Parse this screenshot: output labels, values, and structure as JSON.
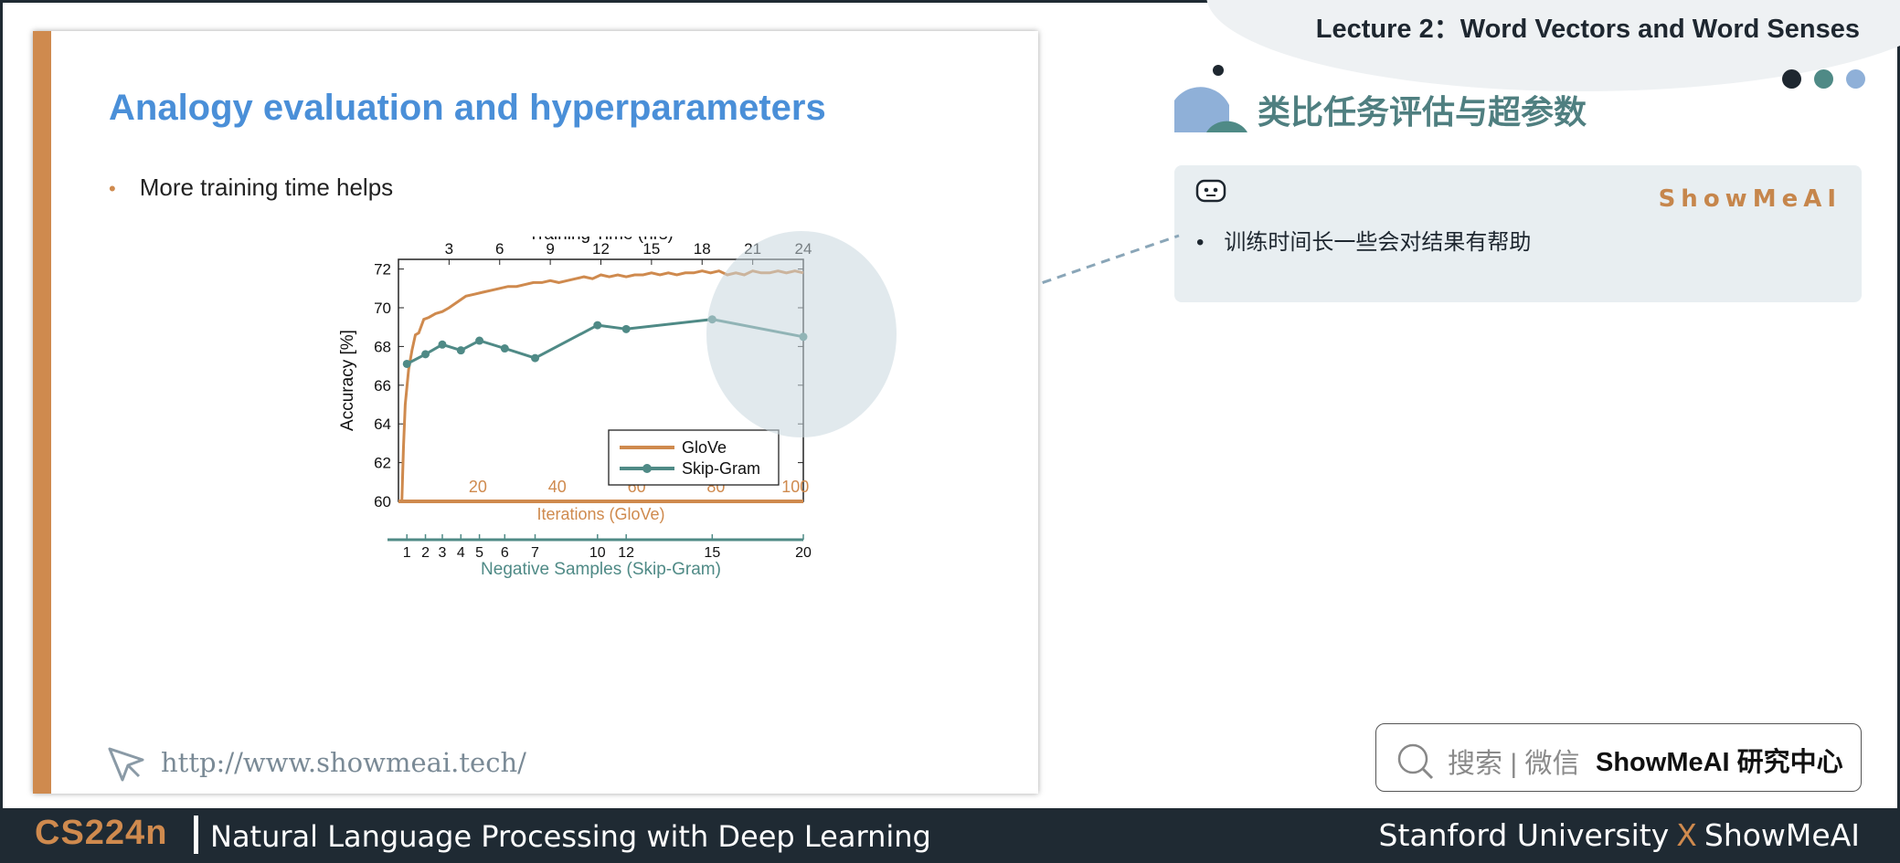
{
  "slide": {
    "title": "Analogy evaluation and hyperparameters",
    "bullet": "More training time helps",
    "url": "http://www.showmeai.tech/"
  },
  "header": {
    "lecture": "Lecture 2：Word Vectors and Word Senses",
    "cn_title": "类比任务评估与超参数"
  },
  "card": {
    "brand": "ShowMeAI",
    "bullet": "训练时间长一些会对结果有帮助"
  },
  "search": {
    "hint": "搜索 | 微信",
    "name": "ShowMeAI 研究中心"
  },
  "footer": {
    "course": "CS224n",
    "description": "Natural Language Processing with Deep Learning",
    "org_left": "Stanford University",
    "x": "X",
    "org_right": "ShowMeAI"
  },
  "colors": {
    "accent_orange": "#cf8a4e",
    "title_blue": "#4a8fd8",
    "teal": "#4f7f80",
    "dark": "#1f2a33",
    "dots": [
      "#1e2730",
      "#4f8a86",
      "#8fb0d8"
    ]
  },
  "icons": [
    "cursor-icon",
    "robot-icon",
    "search-icon"
  ],
  "chart_data": {
    "type": "line",
    "title": "",
    "ylabel": "Accuracy [%]",
    "ylim": [
      60,
      72.5
    ],
    "yticks": [
      60,
      62,
      64,
      66,
      68,
      70,
      72
    ],
    "top_axis": {
      "label": "Training Time (hrs)",
      "ticks": [
        3,
        6,
        9,
        12,
        15,
        18,
        21,
        24
      ],
      "range": [
        0,
        24
      ]
    },
    "bottom_axis_glove": {
      "label": "Iterations (GloVe)",
      "ticks": [
        20,
        40,
        60,
        80,
        100
      ],
      "range": [
        0,
        102
      ]
    },
    "bottom_axis_skipgram": {
      "label": "Negative Samples (Skip-Gram)",
      "ticks": [
        1,
        2,
        3,
        4,
        5,
        6,
        7,
        10,
        12,
        15,
        20
      ]
    },
    "legend_position": "lower-right",
    "series": [
      {
        "name": "GloVe",
        "color": "#cf8a4e",
        "x_hours": [
          0.2,
          0.3,
          0.4,
          0.6,
          0.8,
          1.0,
          1.2,
          1.5,
          1.8,
          2.2,
          2.6,
          3.0,
          3.5,
          4.0,
          4.5,
          5.0,
          5.5,
          6.0,
          6.5,
          7.0,
          7.5,
          8.0,
          8.5,
          9.0,
          9.5,
          10.0,
          10.5,
          11.0,
          11.5,
          12.0,
          12.5,
          13.0,
          13.5,
          14.0,
          14.5,
          15.0,
          15.5,
          16.0,
          16.5,
          17.0,
          17.5,
          18.0,
          18.5,
          19.0,
          19.5,
          20.0,
          20.5,
          21.0,
          21.5,
          22.0,
          22.5,
          23.0,
          23.5,
          24.0
        ],
        "y": [
          60.0,
          62.8,
          65.0,
          66.8,
          67.8,
          68.6,
          68.7,
          69.4,
          69.5,
          69.7,
          69.8,
          70.0,
          70.3,
          70.6,
          70.7,
          70.8,
          70.9,
          71.0,
          71.1,
          71.1,
          71.2,
          71.3,
          71.3,
          71.4,
          71.3,
          71.4,
          71.5,
          71.6,
          71.5,
          71.7,
          71.6,
          71.7,
          71.6,
          71.7,
          71.7,
          71.8,
          71.7,
          71.8,
          71.7,
          71.8,
          71.8,
          71.9,
          71.8,
          71.9,
          71.7,
          71.8,
          71.7,
          71.9,
          71.8,
          71.8,
          71.9,
          71.8,
          71.9,
          71.8
        ]
      },
      {
        "name": "Skip-Gram",
        "color": "#4f8a86",
        "x_negative_samples": [
          1,
          2,
          3,
          4,
          5,
          6,
          7,
          10,
          12,
          15,
          20
        ],
        "x_hours": [
          0.5,
          1.6,
          2.6,
          3.7,
          4.8,
          6.3,
          8.1,
          11.8,
          13.5,
          18.6,
          24.0
        ],
        "y": [
          67.1,
          67.6,
          68.1,
          67.8,
          68.3,
          67.9,
          67.4,
          69.1,
          68.9,
          69.4,
          68.5
        ]
      }
    ]
  }
}
